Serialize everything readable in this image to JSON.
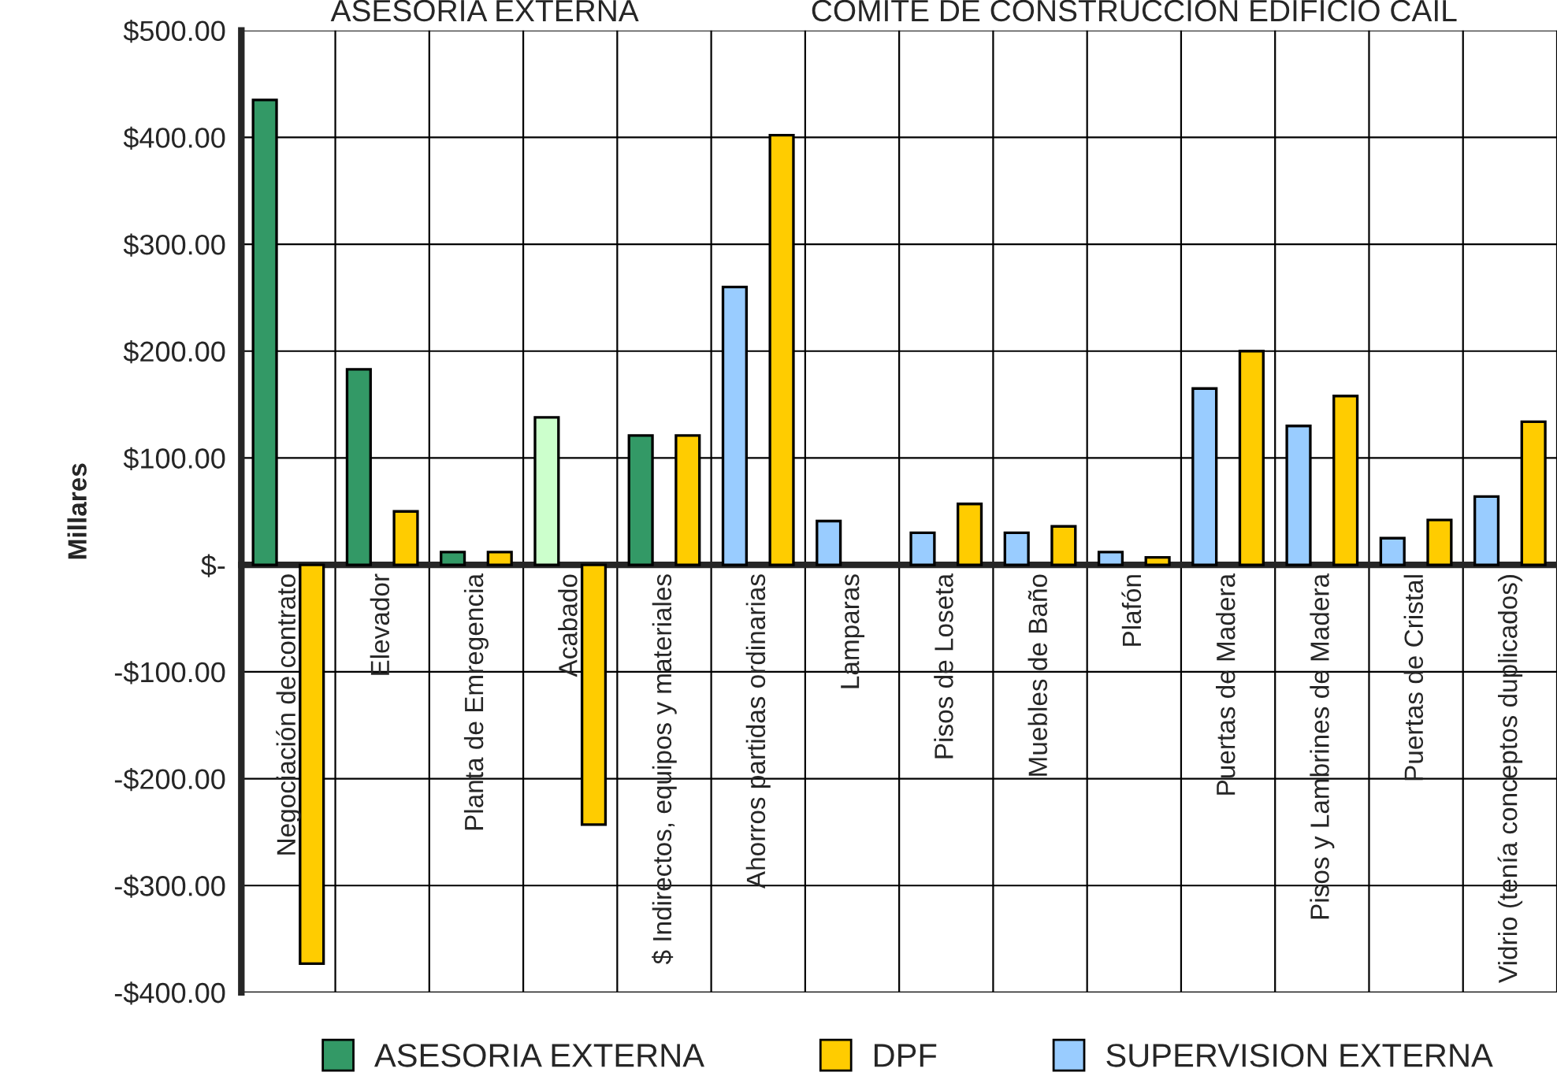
{
  "chart_data": {
    "type": "bar",
    "ylabel": "Millares",
    "categories": [
      "Negociación de contrato",
      "Elevador",
      "Planta de Emregencia",
      "Acabado",
      "$ Indirectos, equipos y materiales",
      "Ahorros partidas ordinarias",
      "Lamparas",
      "Pisos de Loseta",
      "Muebles de Baño",
      "Plafón",
      "Puertas de Madera",
      "Pisos y Lambrines de Madera",
      "Puertas de Cristal",
      "Vidrio (tenía conceptos duplicados)"
    ],
    "series": [
      {
        "name": "ASESORIA EXTERNA",
        "color": "#339966",
        "colors": [
          "#339966",
          "#339966",
          "#339966",
          "#ccffcc",
          "#339966",
          "#339966",
          "#339966",
          "#339966",
          "#339966",
          "#339966",
          "#339966",
          "#339966",
          "#339966",
          "#339966"
        ],
        "values": [
          435,
          183,
          12,
          138,
          121,
          null,
          null,
          null,
          null,
          null,
          null,
          null,
          null,
          null
        ]
      },
      {
        "name": "DPF",
        "color": "#ffcc00",
        "values": [
          -373,
          50,
          12,
          -243,
          121,
          402,
          null,
          57,
          36,
          7,
          200,
          158,
          42,
          134
        ]
      },
      {
        "name": "SUPERVISION EXTERNA",
        "color": "#99ccff",
        "values": [
          null,
          null,
          null,
          null,
          null,
          260,
          41,
          30,
          30,
          12,
          165,
          130,
          25,
          64
        ]
      }
    ],
    "ylim": [
      -400,
      500
    ],
    "yticks": [
      {
        "value": -400,
        "label": "-$400.00"
      },
      {
        "value": -300,
        "label": "-$300.00"
      },
      {
        "value": -200,
        "label": "-$200.00"
      },
      {
        "value": -100,
        "label": "-$100.00"
      },
      {
        "value": 0,
        "label": "$-"
      },
      {
        "value": 100,
        "label": "$100.00"
      },
      {
        "value": 200,
        "label": "$200.00"
      },
      {
        "value": 300,
        "label": "$300.00"
      },
      {
        "value": 400,
        "label": "$400.00"
      },
      {
        "value": 500,
        "label": "$500.00"
      }
    ],
    "annotations": [
      "ASESORIA EXTERNA",
      "COMITE DE CONSTRUCCION EDIFICIO CAIL"
    ],
    "grid": true,
    "legend": "bottom",
    "marker": "square"
  }
}
